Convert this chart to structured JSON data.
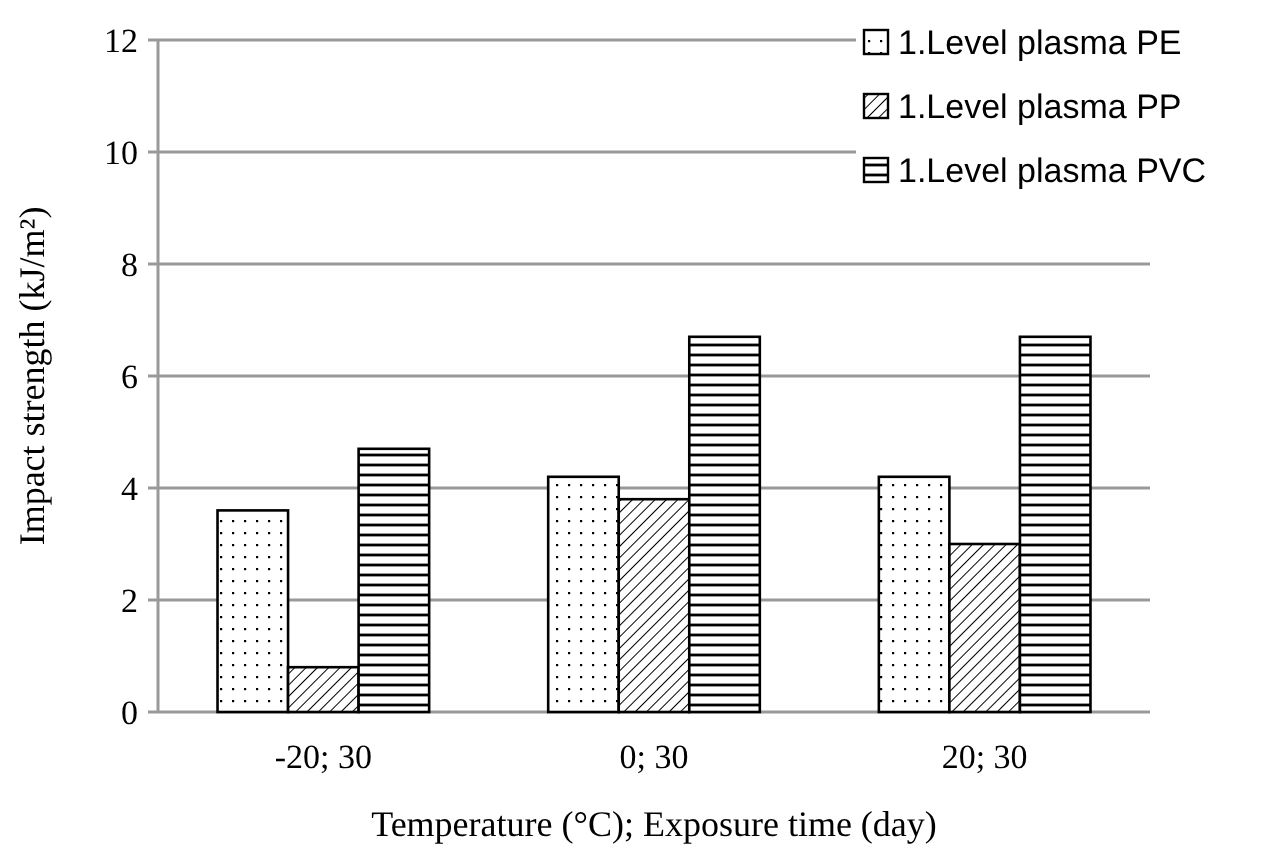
{
  "chart_data": {
    "type": "bar",
    "xlabel": "Temperature (°C); Exposure time (day)",
    "ylabel": "Impact strength (kJ/m²)",
    "categories": [
      "-20; 30",
      "0; 30",
      "20; 30"
    ],
    "series": [
      {
        "name": "1.Level plasma PE",
        "color": "#000000",
        "values": [
          3.6,
          4.2,
          4.2
        ]
      },
      {
        "name": "1.Level plasma PP",
        "color": "#000000",
        "values": [
          0.8,
          3.8,
          3.0
        ]
      },
      {
        "name": "1.Level plasma PVC",
        "color": "#000000",
        "values": [
          4.7,
          6.7,
          6.7
        ]
      }
    ],
    "ylim": [
      0,
      12
    ],
    "yticks": [
      0,
      2,
      4,
      6,
      8,
      10,
      12
    ],
    "grid": "y",
    "legend": "top right"
  }
}
